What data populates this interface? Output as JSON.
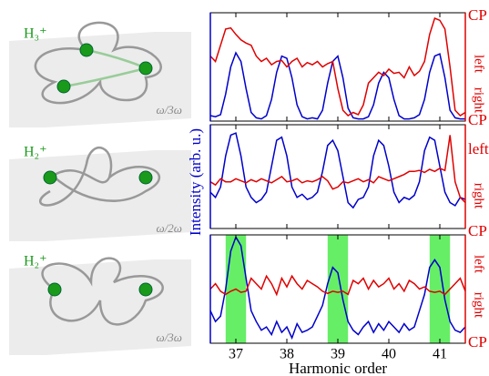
{
  "chart_data": [
    {
      "type": "line",
      "molecule": "H₃⁺",
      "field": "ω/3ω",
      "x": [
        36.5,
        36.6,
        36.7,
        36.8,
        36.9,
        37.0,
        37.1,
        37.2,
        37.3,
        37.4,
        37.5,
        37.6,
        37.7,
        37.8,
        37.9,
        38.0,
        38.1,
        38.2,
        38.3,
        38.4,
        38.5,
        38.6,
        38.7,
        38.8,
        38.9,
        39.0,
        39.1,
        39.2,
        39.3,
        39.4,
        39.5,
        39.6,
        39.7,
        39.8,
        39.9,
        40.0,
        40.1,
        40.2,
        40.3,
        40.4,
        40.5,
        40.6,
        40.7,
        40.8,
        40.9,
        41.0,
        41.1,
        41.2,
        41.3,
        41.4,
        41.5
      ],
      "series": [
        {
          "color": "#0000cc",
          "values": [
            0.05,
            0.04,
            0.06,
            0.25,
            0.5,
            0.63,
            0.55,
            0.3,
            0.08,
            0.03,
            0.02,
            0.05,
            0.2,
            0.45,
            0.6,
            0.58,
            0.4,
            0.15,
            0.04,
            0.02,
            0.03,
            0.02,
            0.1,
            0.35,
            0.55,
            0.6,
            0.4,
            0.12,
            0.03,
            0.02,
            0.02,
            0.04,
            0.15,
            0.35,
            0.45,
            0.4,
            0.2,
            0.05,
            0.02,
            0.02,
            0.03,
            0.06,
            0.2,
            0.45,
            0.6,
            0.62,
            0.4,
            0.1,
            0.03,
            0.02,
            0.02
          ]
        },
        {
          "color": "#e00000",
          "values": [
            0.6,
            0.55,
            0.7,
            0.85,
            0.86,
            0.8,
            0.75,
            0.72,
            0.7,
            0.6,
            0.55,
            0.58,
            0.52,
            0.55,
            0.56,
            0.5,
            0.55,
            0.58,
            0.5,
            0.54,
            0.52,
            0.55,
            0.5,
            0.53,
            0.55,
            0.3,
            0.1,
            0.05,
            0.08,
            0.06,
            0.15,
            0.35,
            0.4,
            0.45,
            0.42,
            0.48,
            0.44,
            0.45,
            0.4,
            0.5,
            0.42,
            0.46,
            0.55,
            0.8,
            0.95,
            0.93,
            0.85,
            0.5,
            0.1,
            0.05,
            0.08
          ]
        }
      ],
      "xlim": [
        36.5,
        41.5
      ],
      "ylim": [
        0,
        1
      ],
      "xticks": [
        37,
        38,
        39,
        40,
        41
      ],
      "right_labels": [
        "CP",
        "left",
        "right",
        "CP"
      ]
    },
    {
      "type": "line",
      "molecule": "H₂⁺",
      "field": "ω/2ω",
      "ylabel": "Intensity (arb. u.)",
      "x": [
        36.5,
        36.6,
        36.7,
        36.8,
        36.9,
        37.0,
        37.1,
        37.2,
        37.3,
        37.4,
        37.5,
        37.6,
        37.7,
        37.8,
        37.9,
        38.0,
        38.1,
        38.2,
        38.3,
        38.4,
        38.5,
        38.6,
        38.7,
        38.8,
        38.9,
        39.0,
        39.1,
        39.2,
        39.3,
        39.4,
        39.5,
        39.6,
        39.7,
        39.8,
        39.9,
        40.0,
        40.1,
        40.2,
        40.3,
        40.4,
        40.5,
        40.6,
        40.7,
        40.8,
        40.9,
        41.0,
        41.1,
        41.2,
        41.3,
        41.4,
        41.5
      ],
      "series": [
        {
          "color": "#0000cc",
          "values": [
            0.35,
            0.3,
            0.4,
            0.7,
            0.9,
            0.92,
            0.7,
            0.4,
            0.3,
            0.25,
            0.28,
            0.35,
            0.6,
            0.85,
            0.88,
            0.7,
            0.4,
            0.3,
            0.33,
            0.28,
            0.3,
            0.35,
            0.55,
            0.8,
            0.85,
            0.75,
            0.5,
            0.25,
            0.2,
            0.28,
            0.3,
            0.4,
            0.7,
            0.85,
            0.8,
            0.6,
            0.35,
            0.25,
            0.3,
            0.28,
            0.32,
            0.45,
            0.75,
            0.88,
            0.85,
            0.6,
            0.35,
            0.25,
            0.22,
            0.3,
            0.28
          ]
        },
        {
          "color": "#e00000",
          "values": [
            0.45,
            0.42,
            0.48,
            0.45,
            0.45,
            0.48,
            0.46,
            0.44,
            0.47,
            0.45,
            0.48,
            0.46,
            0.44,
            0.47,
            0.5,
            0.45,
            0.46,
            0.48,
            0.44,
            0.46,
            0.45,
            0.47,
            0.5,
            0.46,
            0.38,
            0.4,
            0.45,
            0.44,
            0.46,
            0.48,
            0.45,
            0.47,
            0.44,
            0.5,
            0.48,
            0.46,
            0.48,
            0.5,
            0.52,
            0.55,
            0.55,
            0.56,
            0.54,
            0.57,
            0.55,
            0.58,
            0.56,
            0.9,
            0.45,
            0.3,
            0.25
          ]
        }
      ],
      "xlim": [
        36.5,
        41.5
      ],
      "ylim": [
        0,
        1
      ],
      "xticks": [
        37,
        38,
        39,
        40,
        41
      ],
      "right_labels": [
        "left",
        "right"
      ]
    },
    {
      "type": "line",
      "molecule": "H₂⁺",
      "field": "ω/3ω",
      "xlabel": "Harmonic order",
      "x": [
        36.5,
        36.6,
        36.7,
        36.8,
        36.9,
        37.0,
        37.1,
        37.2,
        37.3,
        37.4,
        37.5,
        37.6,
        37.7,
        37.8,
        37.9,
        38.0,
        38.1,
        38.2,
        38.3,
        38.4,
        38.5,
        38.6,
        38.7,
        38.8,
        38.9,
        39.0,
        39.1,
        39.2,
        39.3,
        39.4,
        39.5,
        39.6,
        39.7,
        39.8,
        39.9,
        40.0,
        40.1,
        40.2,
        40.3,
        40.4,
        40.5,
        40.6,
        40.7,
        40.8,
        40.9,
        41.0,
        41.1,
        41.2,
        41.3,
        41.4,
        41.5
      ],
      "series": [
        {
          "color": "#0000cc",
          "values": [
            0.3,
            0.2,
            0.25,
            0.5,
            0.85,
            0.98,
            0.9,
            0.6,
            0.3,
            0.2,
            0.12,
            0.15,
            0.08,
            0.2,
            0.1,
            0.15,
            0.05,
            0.18,
            0.1,
            0.12,
            0.15,
            0.25,
            0.35,
            0.55,
            0.7,
            0.65,
            0.4,
            0.2,
            0.12,
            0.08,
            0.15,
            0.2,
            0.1,
            0.18,
            0.12,
            0.2,
            0.15,
            0.1,
            0.18,
            0.12,
            0.15,
            0.3,
            0.45,
            0.7,
            0.77,
            0.7,
            0.4,
            0.2,
            0.12,
            0.1,
            0.15
          ]
        },
        {
          "color": "#e00000",
          "values": [
            0.5,
            0.55,
            0.48,
            0.45,
            0.48,
            0.5,
            0.47,
            0.48,
            0.6,
            0.55,
            0.5,
            0.62,
            0.55,
            0.45,
            0.6,
            0.52,
            0.62,
            0.55,
            0.5,
            0.58,
            0.55,
            0.52,
            0.48,
            0.46,
            0.48,
            0.47,
            0.48,
            0.45,
            0.58,
            0.55,
            0.6,
            0.5,
            0.58,
            0.52,
            0.55,
            0.6,
            0.5,
            0.55,
            0.48,
            0.58,
            0.55,
            0.5,
            0.52,
            0.48,
            0.47,
            0.48,
            0.45,
            0.5,
            0.55,
            0.6,
            0.48
          ]
        }
      ],
      "highlight_spans": [
        [
          36.8,
          37.2
        ],
        [
          38.8,
          39.2
        ],
        [
          40.8,
          41.2
        ]
      ],
      "highlight_color": "#66ee66",
      "xlim": [
        36.5,
        41.5
      ],
      "ylim": [
        0,
        1
      ],
      "xticks": [
        37,
        38,
        39,
        40,
        41
      ],
      "right_labels": [
        "CP",
        "left",
        "right",
        "CP"
      ]
    }
  ]
}
